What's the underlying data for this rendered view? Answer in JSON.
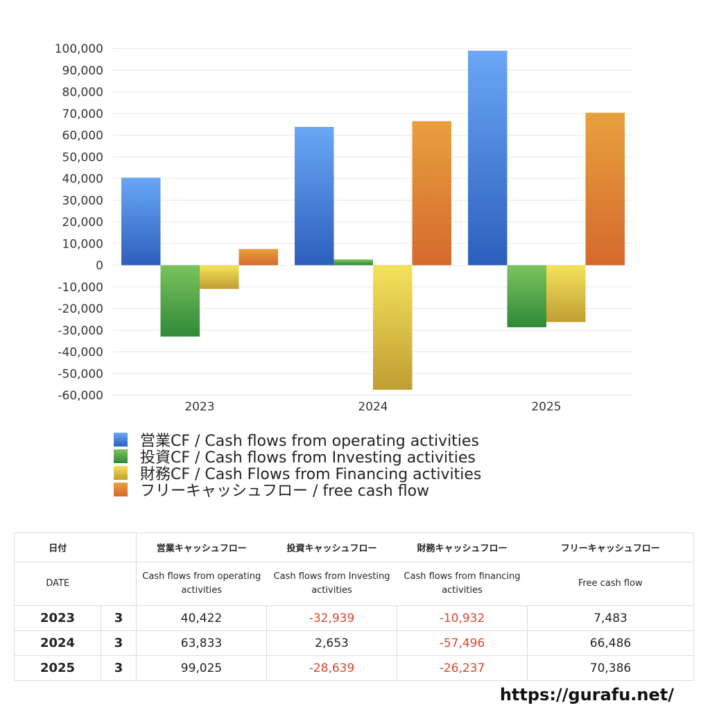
{
  "chart_data": {
    "type": "bar",
    "categories": [
      "2023",
      "2024",
      "2025"
    ],
    "series": [
      {
        "name": "営業CF / Cash flows from operating activities",
        "values": [
          40422,
          63833,
          99025
        ],
        "colors": [
          "#6aa7f5",
          "#2c5fbd"
        ]
      },
      {
        "name": "投資CF / Cash flows from Investing activities",
        "values": [
          -32939,
          2653,
          -28639
        ],
        "colors": [
          "#7cc35e",
          "#2e8a37"
        ]
      },
      {
        "name": "財務CF / Cash Flows from Financing activities",
        "values": [
          -10932,
          -57496,
          -26237
        ],
        "colors": [
          "#f5e25a",
          "#bf9e33"
        ]
      },
      {
        "name": "フリーキャッシュフロー / free cash flow",
        "values": [
          7483,
          66486,
          70386
        ],
        "colors": [
          "#e8a13e",
          "#d5692e"
        ]
      }
    ],
    "ylim": [
      -60000,
      100000
    ],
    "yticks": [
      "100,000",
      "90,000",
      "80,000",
      "70,000",
      "60,000",
      "50,000",
      "40,000",
      "30,000",
      "20,000",
      "10,000",
      "0",
      "-10,000",
      "-20,000",
      "-30,000",
      "-40,000",
      "-50,000",
      "-60,000"
    ],
    "grid": true,
    "legend_position": "bottom-left"
  },
  "table": {
    "header_ja": [
      "日付",
      "",
      "営業キャッシュフロー",
      "投資キャッシュフロー",
      "財務キャッシュフロー",
      "フリーキャッシュフロー"
    ],
    "header_en": [
      "DATE",
      "",
      "Cash flows from operating activities",
      "Cash flows from Investing activities",
      "Cash flows from financing activities",
      "Free cash flow"
    ],
    "rows": [
      {
        "year": "2023",
        "month": "3",
        "op": "40,422",
        "inv": "-32,939",
        "fin": "-10,932",
        "fcf": "7,483"
      },
      {
        "year": "2024",
        "month": "3",
        "op": "63,833",
        "inv": "2,653",
        "fin": "-57,496",
        "fcf": "66,486"
      },
      {
        "year": "2025",
        "month": "3",
        "op": "99,025",
        "inv": "-28,639",
        "fin": "-26,237",
        "fcf": "70,386"
      }
    ],
    "negative_color": "#d9462f"
  },
  "site": "https://gurafu.net/"
}
